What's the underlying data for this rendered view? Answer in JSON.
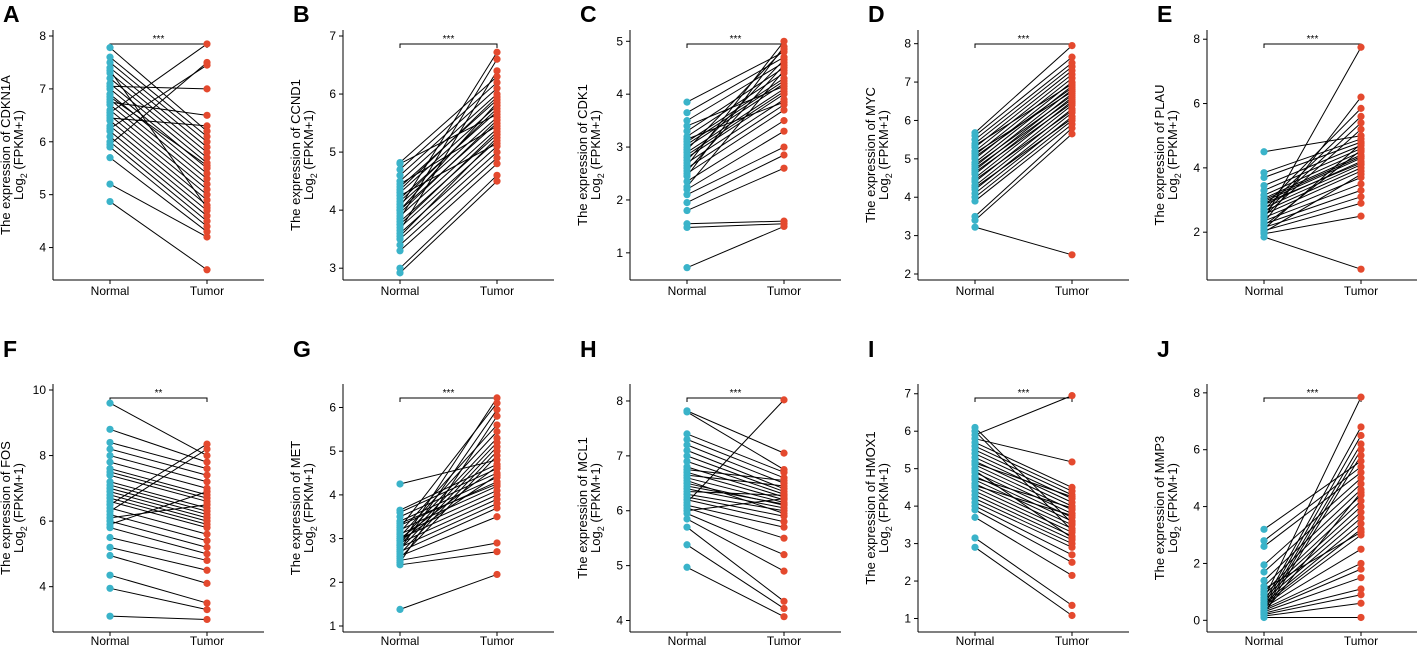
{
  "colors": {
    "normal": "#3ab3c9",
    "tumor": "#e4492e",
    "line": "#000000"
  },
  "chart_data": [
    {
      "panel": "A",
      "type": "paired-dot",
      "gene": "CDKN1A",
      "ylabel_line1": "The expression of CDKN1A",
      "ylabel_line2_prefix": "Log",
      "ylabel_sub": "2",
      "ylabel_line2_suffix": " (FPKM+1)",
      "categories": [
        "Normal",
        "Tumor"
      ],
      "significance": "***",
      "ylim": [
        3.5,
        8
      ],
      "yticks": [
        4,
        5,
        6,
        7,
        8
      ],
      "normal": [
        4.87,
        5.2,
        5.7,
        5.9,
        6.0,
        6.1,
        6.2,
        6.3,
        6.4,
        6.5,
        6.6,
        6.7,
        6.8,
        6.9,
        7.0,
        7.1,
        7.2,
        7.3,
        7.4,
        7.5,
        7.6,
        7.78,
        6.45,
        6.75,
        7.05,
        6.25,
        5.95,
        6.55,
        7.35,
        6.85
      ],
      "tumor": [
        3.58,
        4.2,
        4.3,
        4.4,
        4.5,
        4.6,
        4.7,
        4.8,
        4.9,
        5.0,
        5.1,
        5.2,
        5.3,
        5.4,
        5.5,
        5.6,
        5.7,
        5.8,
        5.9,
        6.0,
        6.1,
        6.2,
        6.3,
        6.5,
        7.0,
        7.45,
        7.5,
        7.85,
        4.75,
        5.55
      ]
    },
    {
      "panel": "B",
      "type": "paired-dot",
      "gene": "CCND1",
      "ylabel_line1": "The expression of CCND1",
      "ylabel_line2_prefix": "Log",
      "ylabel_sub": "2",
      "ylabel_line2_suffix": " (FPKM+1)",
      "categories": [
        "Normal",
        "Tumor"
      ],
      "significance": "***",
      "ylim": [
        2.9,
        7
      ],
      "yticks": [
        3,
        4,
        5,
        6,
        7
      ],
      "normal": [
        2.92,
        3.0,
        3.3,
        3.4,
        3.5,
        3.6,
        3.7,
        3.8,
        3.9,
        4.0,
        4.1,
        4.2,
        4.3,
        4.4,
        4.5,
        4.6,
        4.7,
        4.82,
        3.65,
        3.85,
        4.05,
        4.25,
        3.75,
        3.95,
        4.15,
        4.35,
        3.55,
        4.45,
        4.8,
        4.0
      ],
      "tumor": [
        4.5,
        4.6,
        4.8,
        4.9,
        5.0,
        5.1,
        5.2,
        5.3,
        5.4,
        5.5,
        5.6,
        5.7,
        5.8,
        5.9,
        6.0,
        6.1,
        6.2,
        6.3,
        6.4,
        6.6,
        6.72,
        5.15,
        5.35,
        5.55,
        5.75,
        5.95,
        5.25,
        5.45,
        5.65,
        5.85
      ]
    },
    {
      "panel": "C",
      "type": "paired-dot",
      "gene": "CDK1",
      "ylabel_line1": "The expression of CDK1",
      "ylabel_line2_prefix": "Log",
      "ylabel_sub": "2",
      "ylabel_line2_suffix": " (FPKM+1)",
      "categories": [
        "Normal",
        "Tumor"
      ],
      "significance": "***",
      "ylim": [
        0.6,
        5.1
      ],
      "yticks": [
        1,
        2,
        3,
        4,
        5
      ],
      "normal": [
        0.72,
        1.48,
        1.55,
        1.8,
        1.95,
        2.1,
        2.2,
        2.35,
        2.5,
        2.6,
        2.7,
        2.8,
        2.9,
        3.0,
        3.1,
        3.2,
        3.3,
        3.5,
        3.65,
        3.85,
        2.45,
        2.65,
        2.85,
        3.05,
        2.25,
        2.75,
        2.95,
        3.15,
        3.4,
        2.55
      ],
      "tumor": [
        1.5,
        1.55,
        1.6,
        2.6,
        2.85,
        3.0,
        3.3,
        3.5,
        3.7,
        3.8,
        3.9,
        4.0,
        4.1,
        4.2,
        4.3,
        4.4,
        4.5,
        4.6,
        4.7,
        4.8,
        4.9,
        5.0,
        4.05,
        4.25,
        4.45,
        4.65,
        4.85,
        3.85,
        4.15,
        4.55
      ]
    },
    {
      "panel": "D",
      "type": "paired-dot",
      "gene": "MYC",
      "ylabel_line1": "The expression of MYC",
      "ylabel_line2_prefix": "Log",
      "ylabel_sub": "2",
      "ylabel_line2_suffix": " (FPKM+1)",
      "categories": [
        "Normal",
        "Tumor"
      ],
      "significance": "***",
      "ylim": [
        2,
        8.2
      ],
      "yticks": [
        2,
        3,
        4,
        5,
        6,
        7,
        8
      ],
      "normal": [
        3.22,
        3.4,
        3.5,
        3.9,
        4.0,
        4.1,
        4.2,
        4.3,
        4.4,
        4.5,
        4.6,
        4.7,
        4.8,
        4.9,
        5.0,
        5.1,
        5.2,
        5.3,
        5.4,
        5.5,
        5.6,
        5.68,
        4.45,
        4.65,
        4.85,
        5.05,
        4.25,
        4.75,
        5.15,
        5.35
      ],
      "tumor": [
        2.5,
        5.65,
        5.8,
        5.9,
        6.0,
        6.1,
        6.2,
        6.3,
        6.4,
        6.5,
        6.6,
        6.7,
        6.8,
        6.9,
        7.0,
        7.1,
        7.2,
        7.3,
        7.4,
        7.5,
        7.65,
        7.95,
        6.25,
        6.45,
        6.65,
        6.85,
        6.05,
        6.55,
        6.75,
        6.95
      ]
    },
    {
      "panel": "E",
      "type": "paired-dot",
      "gene": "PLAU",
      "ylabel_line1": "The expression of PLAU",
      "ylabel_line2_prefix": "Log",
      "ylabel_sub": "2",
      "ylabel_line2_suffix": " (FPKM+1)",
      "categories": [
        "Normal",
        "Tumor"
      ],
      "significance": "***",
      "ylim": [
        0.7,
        8.1
      ],
      "yticks": [
        2,
        4,
        6,
        8
      ],
      "normal": [
        1.85,
        1.95,
        2.05,
        2.15,
        2.25,
        2.35,
        2.45,
        2.55,
        2.65,
        2.75,
        2.85,
        2.95,
        3.05,
        3.15,
        3.3,
        3.45,
        3.7,
        3.85,
        4.5,
        2.5,
        2.6,
        2.7,
        2.8,
        2.3,
        2.4,
        2.9,
        3.0,
        2.2,
        2.1,
        2.0
      ],
      "tumor": [
        0.85,
        2.5,
        2.9,
        3.1,
        3.3,
        3.5,
        3.7,
        3.9,
        4.0,
        4.1,
        4.2,
        4.3,
        4.4,
        4.5,
        4.6,
        4.7,
        4.8,
        4.9,
        5.0,
        5.2,
        5.4,
        5.6,
        5.85,
        6.2,
        7.75,
        4.15,
        4.35,
        4.55,
        4.75,
        3.8
      ]
    },
    {
      "panel": "F",
      "type": "paired-dot",
      "gene": "FOS",
      "ylabel_line1": "The expression of FOS",
      "ylabel_line2_prefix": "Log",
      "ylabel_sub": "2",
      "ylabel_line2_suffix": " (FPKM+1)",
      "categories": [
        "Normal",
        "Tumor"
      ],
      "significance": "**",
      "ylim": [
        2.8,
        10
      ],
      "yticks": [
        4,
        6,
        8,
        10
      ],
      "normal": [
        3.1,
        3.95,
        4.35,
        4.95,
        5.2,
        5.5,
        5.8,
        6.0,
        6.2,
        6.4,
        6.6,
        6.8,
        7.0,
        7.2,
        7.4,
        7.6,
        7.8,
        8.0,
        8.2,
        8.4,
        8.8,
        9.6,
        6.3,
        6.5,
        6.7,
        6.9,
        7.1,
        6.1,
        7.5,
        5.9
      ],
      "tumor": [
        3.0,
        3.3,
        3.5,
        4.1,
        4.5,
        4.8,
        5.0,
        5.2,
        5.4,
        5.6,
        5.8,
        6.0,
        6.2,
        6.4,
        6.6,
        6.8,
        7.0,
        7.2,
        7.4,
        7.6,
        7.8,
        8.0,
        8.2,
        8.35,
        5.9,
        6.1,
        6.3,
        6.5,
        6.7,
        6.9
      ]
    },
    {
      "panel": "G",
      "type": "paired-dot",
      "gene": "MET",
      "ylabel_line1": "The expression of MET",
      "ylabel_line2_prefix": "Log",
      "ylabel_sub": "2",
      "ylabel_line2_suffix": " (FPKM+1)",
      "categories": [
        "Normal",
        "Tumor"
      ],
      "significance": "***",
      "ylim": [
        1,
        6.4
      ],
      "yticks": [
        1,
        2,
        3,
        4,
        5,
        6
      ],
      "normal": [
        1.38,
        2.4,
        2.5,
        2.6,
        2.7,
        2.8,
        2.9,
        3.0,
        3.1,
        3.2,
        3.3,
        3.4,
        3.5,
        3.6,
        3.65,
        4.25,
        2.55,
        2.65,
        2.75,
        2.85,
        2.95,
        3.05,
        3.15,
        2.45,
        2.75,
        3.25,
        2.85,
        3.35,
        2.95,
        3.0
      ],
      "tumor": [
        2.18,
        2.7,
        2.9,
        3.5,
        3.7,
        3.8,
        3.9,
        4.0,
        4.1,
        4.2,
        4.3,
        4.4,
        4.5,
        4.6,
        4.7,
        4.8,
        4.9,
        5.0,
        5.1,
        5.2,
        5.3,
        5.45,
        5.6,
        5.8,
        5.95,
        6.1,
        6.22,
        4.25,
        4.45,
        4.65
      ]
    },
    {
      "panel": "H",
      "type": "paired-dot",
      "gene": "MCL1",
      "ylabel_line1": "The expression of MCL1",
      "ylabel_line2_prefix": "Log",
      "ylabel_sub": "2",
      "ylabel_line2_suffix": " (FPKM+1)",
      "categories": [
        "Normal",
        "Tumor"
      ],
      "significance": "***",
      "ylim": [
        3.9,
        8.2
      ],
      "yticks": [
        4,
        5,
        6,
        7,
        8
      ],
      "normal": [
        4.97,
        5.38,
        5.7,
        5.85,
        5.95,
        6.05,
        6.1,
        6.2,
        6.25,
        6.3,
        6.4,
        6.5,
        6.6,
        6.7,
        6.8,
        6.9,
        7.0,
        7.1,
        7.2,
        7.3,
        7.4,
        7.8,
        7.82,
        6.15,
        6.35,
        6.45,
        6.55,
        6.65,
        6.75,
        6.0
      ],
      "tumor": [
        4.07,
        4.22,
        4.35,
        4.9,
        5.2,
        5.5,
        5.7,
        5.8,
        5.9,
        6.0,
        6.05,
        6.1,
        6.15,
        6.2,
        6.25,
        6.3,
        6.35,
        6.4,
        6.5,
        6.6,
        6.7,
        6.75,
        7.05,
        8.02,
        6.28,
        6.12,
        5.95,
        6.45,
        6.55,
        6.22
      ]
    },
    {
      "panel": "I",
      "type": "paired-dot",
      "gene": "HMOX1",
      "ylabel_line1": "The expression of HMOX1",
      "ylabel_line2_prefix": "Log",
      "ylabel_sub": "2",
      "ylabel_line2_suffix": " (FPKM+1)",
      "categories": [
        "Normal",
        "Tumor"
      ],
      "significance": "***",
      "ylim": [
        0.8,
        7.1
      ],
      "yticks": [
        1,
        2,
        3,
        4,
        5,
        6,
        7
      ],
      "normal": [
        2.9,
        3.15,
        3.7,
        3.9,
        4.0,
        4.1,
        4.2,
        4.3,
        4.4,
        4.5,
        4.6,
        4.7,
        4.8,
        4.9,
        5.0,
        5.1,
        5.2,
        5.3,
        5.4,
        5.5,
        5.6,
        5.7,
        5.8,
        5.9,
        6.0,
        6.1,
        4.55,
        4.75,
        4.95,
        5.15
      ],
      "tumor": [
        1.08,
        1.35,
        2.15,
        2.5,
        2.7,
        2.9,
        3.0,
        3.1,
        3.2,
        3.3,
        3.4,
        3.5,
        3.6,
        3.7,
        3.8,
        3.9,
        4.0,
        4.1,
        4.2,
        4.3,
        4.4,
        4.5,
        5.18,
        6.95,
        3.35,
        3.55,
        3.75,
        3.95,
        3.15,
        4.25
      ]
    },
    {
      "panel": "J",
      "type": "paired-dot",
      "gene": "MMP3",
      "ylabel_line1": "The expression of MMP3",
      "ylabel_line2_prefix": "Log",
      "ylabel_sub": "2",
      "ylabel_line2_suffix": " (FPKM+1)",
      "categories": [
        "Normal",
        "Tumor"
      ],
      "significance": "***",
      "ylim": [
        -0.2,
        8.1
      ],
      "yticks": [
        0,
        2,
        4,
        6,
        8
      ],
      "normal": [
        0.1,
        0.15,
        0.2,
        0.25,
        0.3,
        0.35,
        0.4,
        0.45,
        0.5,
        0.55,
        0.6,
        0.7,
        0.8,
        0.9,
        1.0,
        1.2,
        1.4,
        1.7,
        1.95,
        2.6,
        2.8,
        3.2,
        0.22,
        0.33,
        0.42,
        0.52,
        0.62,
        0.75,
        1.1,
        0.28
      ],
      "tumor": [
        0.1,
        0.6,
        0.9,
        1.1,
        1.5,
        1.8,
        2.0,
        2.5,
        3.0,
        3.2,
        3.4,
        3.6,
        3.8,
        4.0,
        4.2,
        4.4,
        4.6,
        4.8,
        5.0,
        5.2,
        5.4,
        5.6,
        5.8,
        6.0,
        6.2,
        6.5,
        6.8,
        7.85,
        3.1,
        4.5
      ]
    }
  ]
}
